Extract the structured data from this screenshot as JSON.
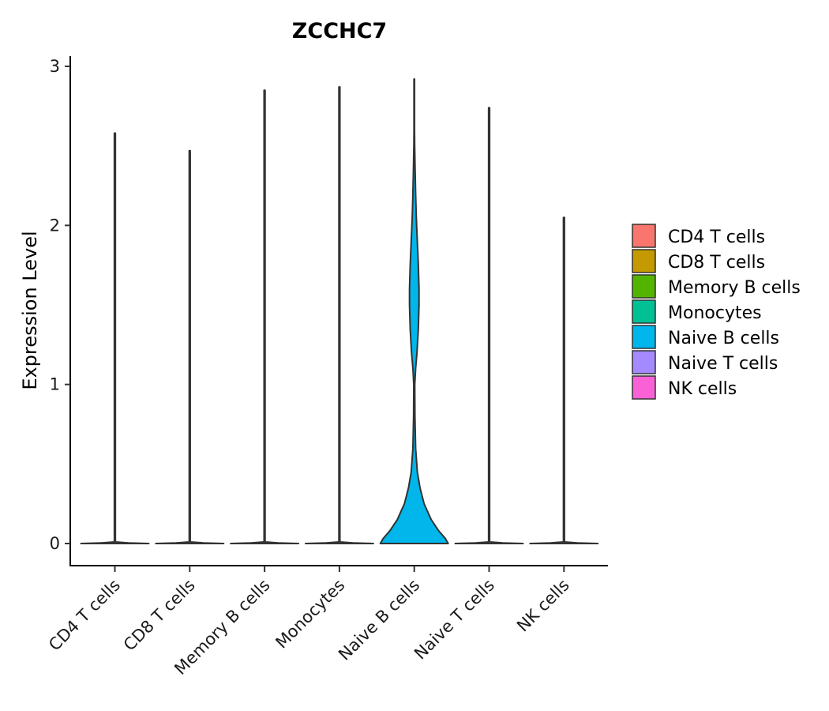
{
  "chart_data": {
    "type": "violin",
    "title": "ZCCHC7",
    "xlabel": "",
    "ylabel": "Expression Level",
    "ylim": [
      -0.14,
      3.06
    ],
    "yticks": [
      0,
      1,
      2,
      3
    ],
    "categories": [
      "CD4 T cells",
      "CD8 T cells",
      "Memory B cells",
      "Monocytes",
      "Naive B cells",
      "Naive T cells",
      "NK cells"
    ],
    "colors": [
      "#F8766D",
      "#C49A00",
      "#53B400",
      "#00C094",
      "#00B6EB",
      "#A58AFF",
      "#FB61D7"
    ],
    "max_values": [
      2.58,
      2.47,
      2.85,
      2.87,
      2.92,
      2.74,
      2.05
    ],
    "legend": {
      "position": "right",
      "entries": [
        "CD4 T cells",
        "CD8 T cells",
        "Memory B cells",
        "Monocytes",
        "Naive B cells",
        "Naive T cells",
        "NK cells"
      ]
    },
    "violins": [
      {
        "name": "CD4 T cells",
        "profile": [
          [
            0,
            1.0
          ],
          [
            0.004,
            0.4
          ],
          [
            0.01,
            0.015
          ],
          [
            2.58,
            0.015
          ]
        ]
      },
      {
        "name": "CD8 T cells",
        "profile": [
          [
            0,
            1.0
          ],
          [
            0.004,
            0.4
          ],
          [
            0.01,
            0.015
          ],
          [
            2.47,
            0.015
          ]
        ]
      },
      {
        "name": "Memory B cells",
        "profile": [
          [
            0,
            1.0
          ],
          [
            0.004,
            0.4
          ],
          [
            0.01,
            0.015
          ],
          [
            2.85,
            0.015
          ]
        ]
      },
      {
        "name": "Monocytes",
        "profile": [
          [
            0,
            1.0
          ],
          [
            0.004,
            0.4
          ],
          [
            0.01,
            0.015
          ],
          [
            2.87,
            0.015
          ]
        ]
      },
      {
        "name": "Naive B cells",
        "profile": [
          [
            0,
            1.0
          ],
          [
            0.03,
            0.92
          ],
          [
            0.08,
            0.72
          ],
          [
            0.15,
            0.5
          ],
          [
            0.25,
            0.29
          ],
          [
            0.35,
            0.17
          ],
          [
            0.45,
            0.09
          ],
          [
            0.6,
            0.04
          ],
          [
            0.8,
            0.02
          ],
          [
            1.0,
            0.015
          ],
          [
            1.1,
            0.04
          ],
          [
            1.2,
            0.08
          ],
          [
            1.35,
            0.12
          ],
          [
            1.5,
            0.14
          ],
          [
            1.6,
            0.14
          ],
          [
            1.75,
            0.12
          ],
          [
            1.9,
            0.09
          ],
          [
            2.05,
            0.06
          ],
          [
            2.2,
            0.04
          ],
          [
            2.35,
            0.025
          ],
          [
            2.5,
            0.012
          ],
          [
            2.6,
            0.008
          ],
          [
            2.92,
            0.008
          ]
        ]
      },
      {
        "name": "Naive T cells",
        "profile": [
          [
            0,
            1.0
          ],
          [
            0.004,
            0.4
          ],
          [
            0.01,
            0.015
          ],
          [
            2.74,
            0.015
          ]
        ]
      },
      {
        "name": "NK cells",
        "profile": [
          [
            0,
            1.0
          ],
          [
            0.004,
            0.4
          ],
          [
            0.01,
            0.015
          ],
          [
            2.05,
            0.015
          ]
        ]
      }
    ]
  }
}
